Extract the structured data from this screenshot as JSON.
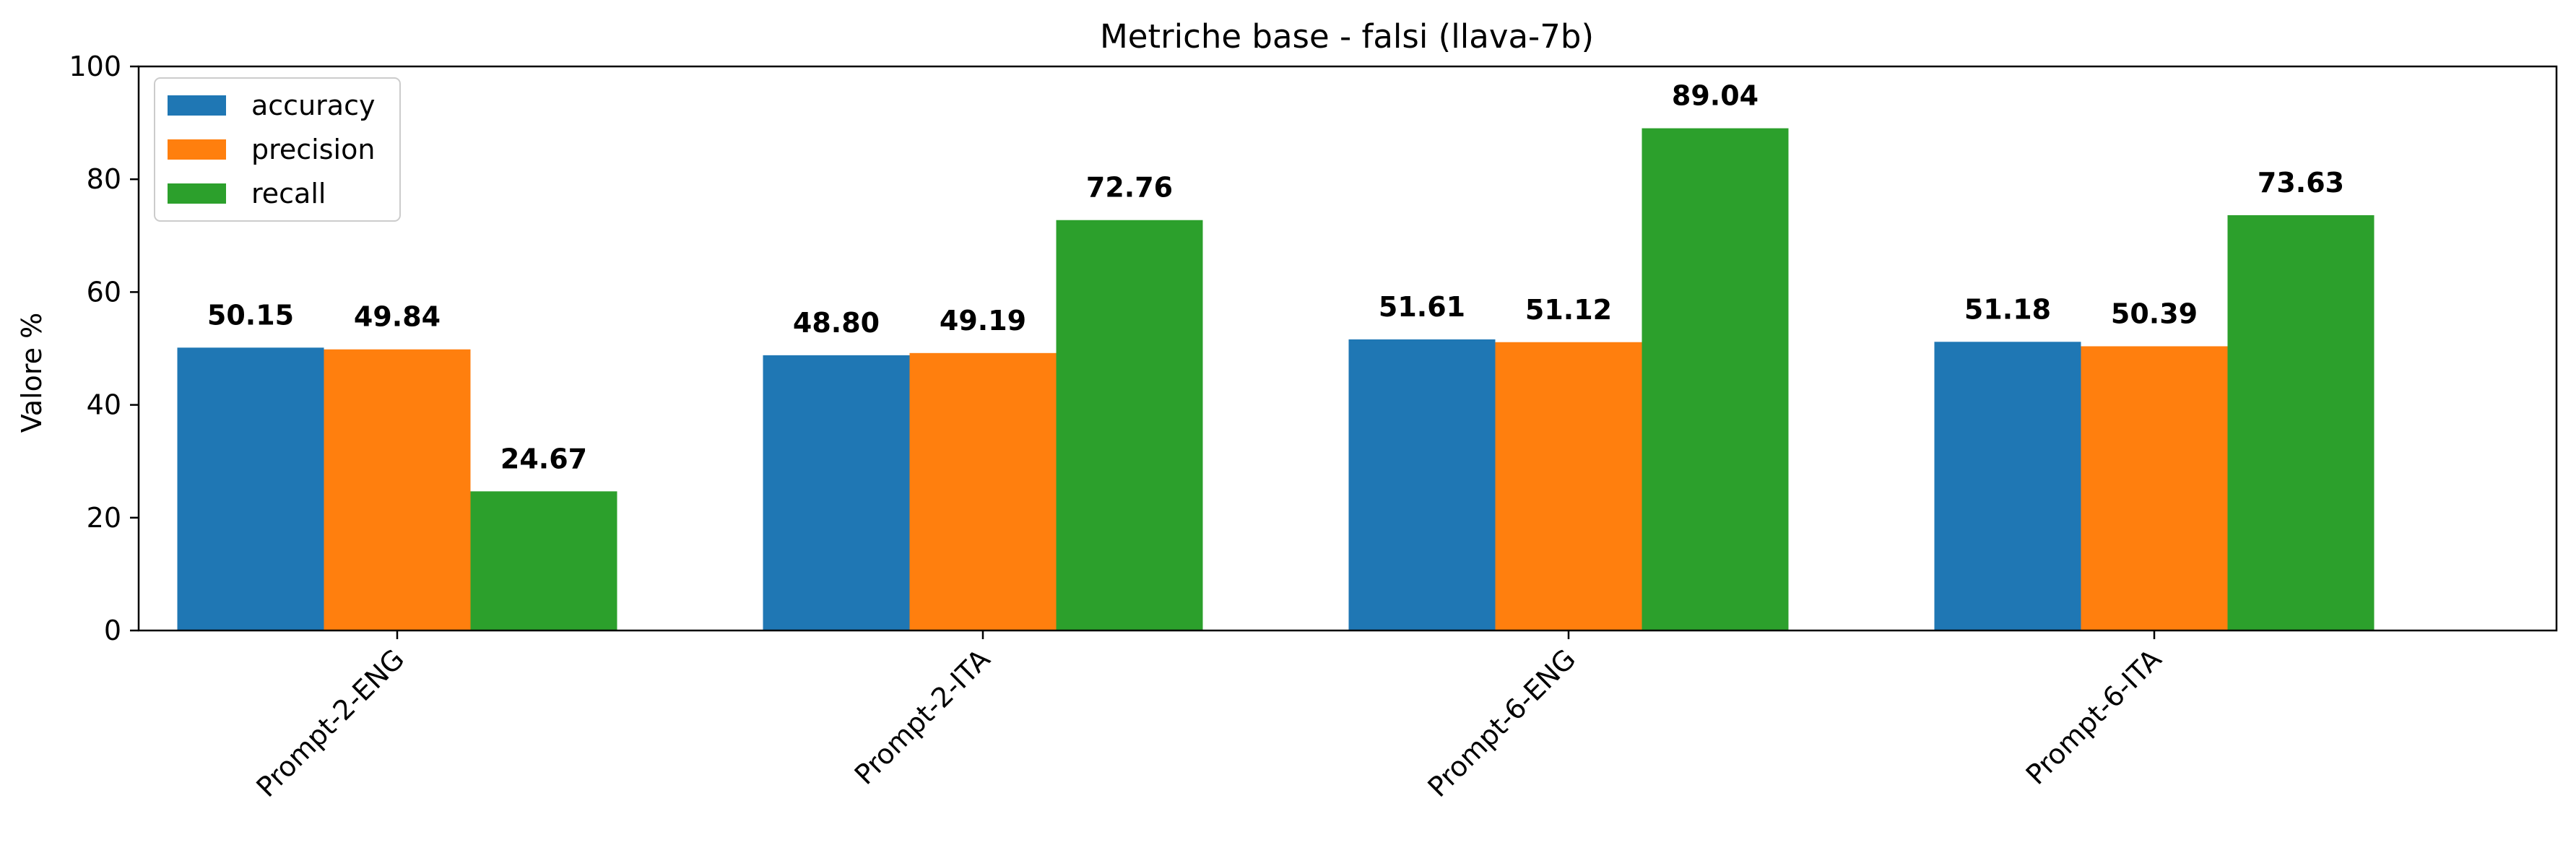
{
  "chart_data": {
    "type": "bar",
    "title": "Metriche base - falsi (llava-7b)",
    "xlabel": "",
    "ylabel": "Valore %",
    "ylim": [
      0,
      100
    ],
    "yticks": [
      0,
      20,
      40,
      60,
      80,
      100
    ],
    "categories": [
      "Prompt-2-ENG",
      "Prompt-2-ITA",
      "Prompt-6-ENG",
      "Prompt-6-ITA"
    ],
    "series": [
      {
        "name": "accuracy",
        "color": "#1f77b4",
        "values": [
          50.15,
          48.8,
          51.61,
          51.18
        ],
        "labels": [
          "50.15",
          "48.80",
          "51.61",
          "51.18"
        ]
      },
      {
        "name": "precision",
        "color": "#ff7f0e",
        "values": [
          49.84,
          49.19,
          51.12,
          50.39
        ],
        "labels": [
          "49.84",
          "49.19",
          "51.12",
          "50.39"
        ]
      },
      {
        "name": "recall",
        "color": "#2ca02c",
        "values": [
          24.67,
          72.76,
          89.04,
          73.63
        ],
        "labels": [
          "24.67",
          "72.76",
          "89.04",
          "73.63"
        ]
      }
    ],
    "grid": false,
    "legend_position": "top-left"
  }
}
